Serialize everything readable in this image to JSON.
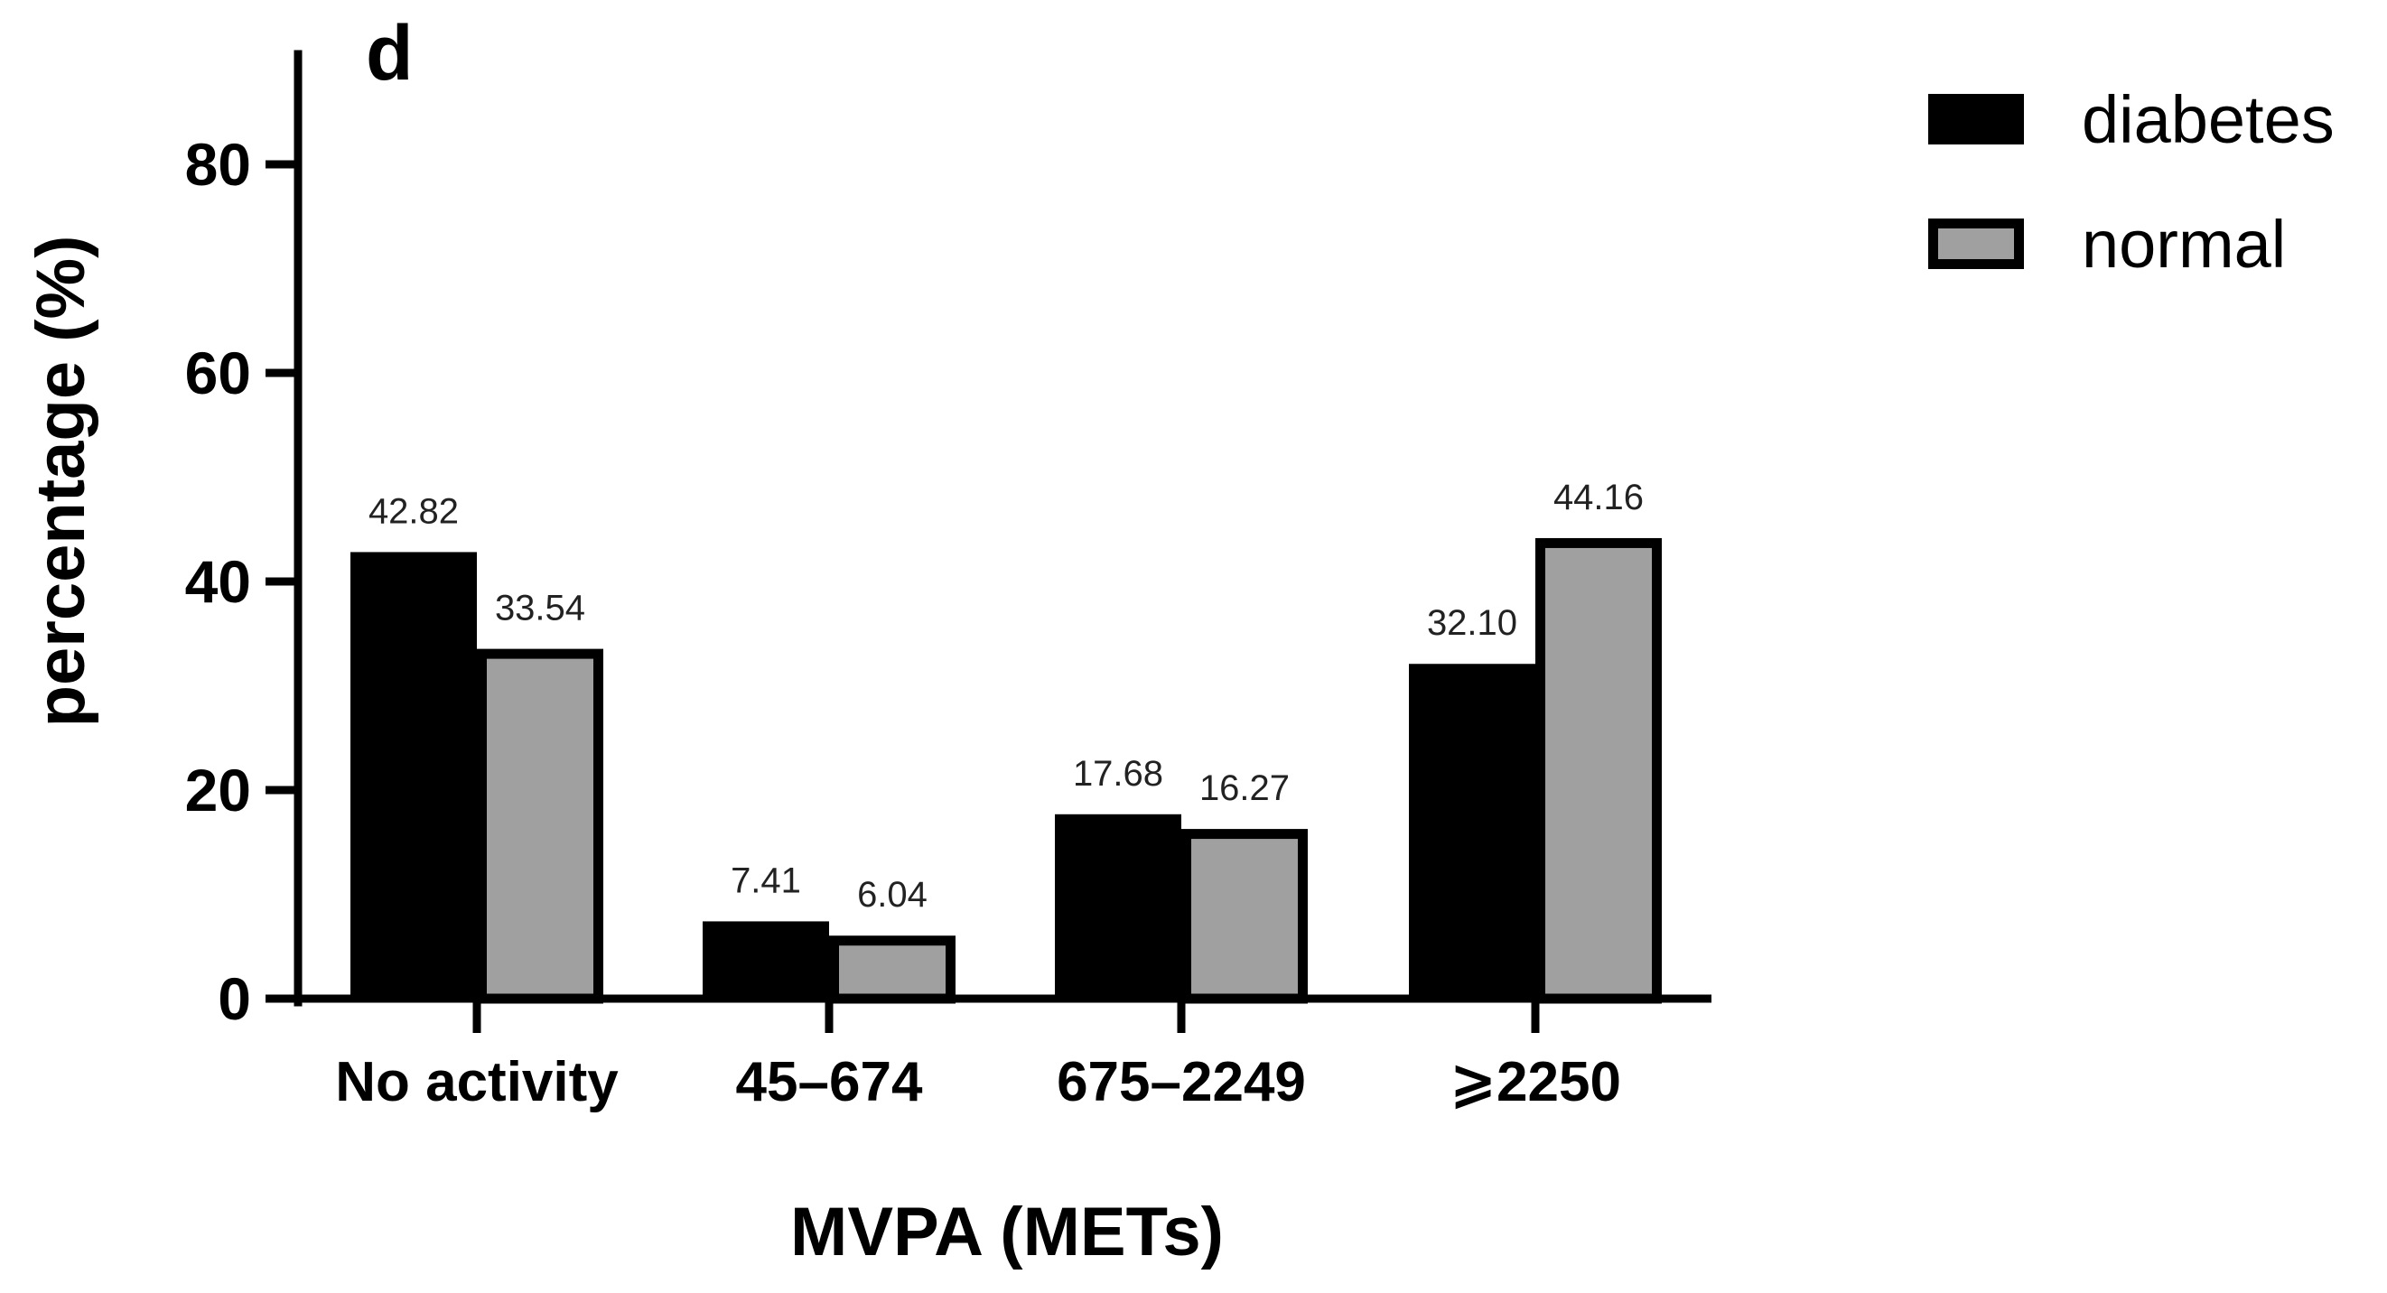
{
  "chart_data": {
    "type": "bar",
    "panel_label": "d",
    "title": "",
    "xlabel": "MVPA (METs)",
    "ylabel": "percentage (%)",
    "ylim": [
      0,
      90
    ],
    "yticks": [
      0,
      20,
      40,
      60,
      80
    ],
    "ytick_labels": [
      "0",
      "20",
      "40",
      "60",
      "80"
    ],
    "categories": [
      "No activity",
      "45–674",
      "675–2249",
      "⩾2250"
    ],
    "series": [
      {
        "name": "diabetes",
        "color": "#000000",
        "values": [
          42.82,
          7.41,
          17.68,
          32.1
        ],
        "labels": [
          "42.82",
          "7.41",
          "17.68",
          "32.10"
        ]
      },
      {
        "name": "normal",
        "color": "#a0a0a0",
        "values": [
          33.54,
          6.04,
          16.27,
          44.16
        ],
        "labels": [
          "33.54",
          "6.04",
          "16.27",
          "44.16"
        ]
      }
    ],
    "legend": {
      "position": "top-right",
      "entries": [
        "diabetes",
        "normal"
      ]
    },
    "grid": false
  }
}
